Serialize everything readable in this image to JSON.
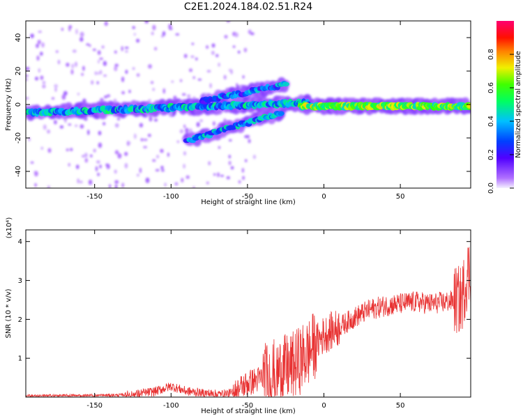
{
  "title": "C2E1.2024.184.02.51.R24",
  "chart_data": [
    {
      "type": "heatmap",
      "xlabel": "Height of straight line (km)",
      "ylabel": "Frequency (Hz)",
      "xlim": [
        -195,
        96
      ],
      "ylim": [
        -50,
        50
      ],
      "xticks": [
        -150,
        -100,
        -50,
        0,
        50
      ],
      "yticks": [
        -40,
        -20,
        0,
        20,
        40
      ],
      "colorbar": {
        "label": "Normalized spectral amplitude",
        "range": [
          0,
          1
        ],
        "ticks": [
          "0.0",
          "0.2",
          "0.4",
          "0.6",
          "0.8"
        ],
        "tick_values": [
          0.0,
          0.2,
          0.4,
          0.6,
          0.8
        ]
      },
      "features": [
        {
          "name": "main band (negative heights)",
          "x": [
            -195,
            -10
          ],
          "freq_at_start": -5,
          "freq_at_end": 1
        },
        {
          "name": "rising streak",
          "x": [
            -90,
            -28
          ],
          "freq_at_start": -22,
          "freq_at_end": -5
        },
        {
          "name": "upper diagonal streak",
          "x": [
            -80,
            -25
          ],
          "freq_at_start": 2,
          "freq_at_end": 12
        },
        {
          "name": "steady band (positive heights)",
          "x": [
            -15,
            96
          ],
          "freq": -1
        }
      ]
    },
    {
      "type": "line",
      "xlabel": "Height of straight line (km)",
      "ylabel": "SNR (10 * v/v)",
      "y_multiplier": "(x10⁴)",
      "xlim": [
        -195,
        96
      ],
      "ylim": [
        0,
        4.3
      ],
      "xticks": [
        -150,
        -100,
        -50,
        0,
        50
      ],
      "yticks": [
        1,
        2,
        3,
        4
      ],
      "color": "#e83232",
      "series": [
        {
          "x": [
            -195,
            -150,
            -125,
            -110,
            -100,
            -90,
            -70,
            -60,
            -50,
            -40,
            -30,
            -20,
            -10,
            -5,
            0,
            10,
            20,
            30,
            40,
            50,
            60,
            70,
            80,
            90,
            94
          ],
          "values": [
            0.03,
            0.04,
            0.06,
            0.15,
            0.28,
            0.15,
            0.07,
            0.1,
            0.35,
            0.5,
            0.65,
            0.8,
            1.15,
            1.4,
            1.6,
            1.8,
            2.05,
            2.25,
            2.35,
            2.4,
            2.45,
            2.4,
            2.45,
            2.5,
            3.2
          ]
        }
      ]
    }
  ]
}
